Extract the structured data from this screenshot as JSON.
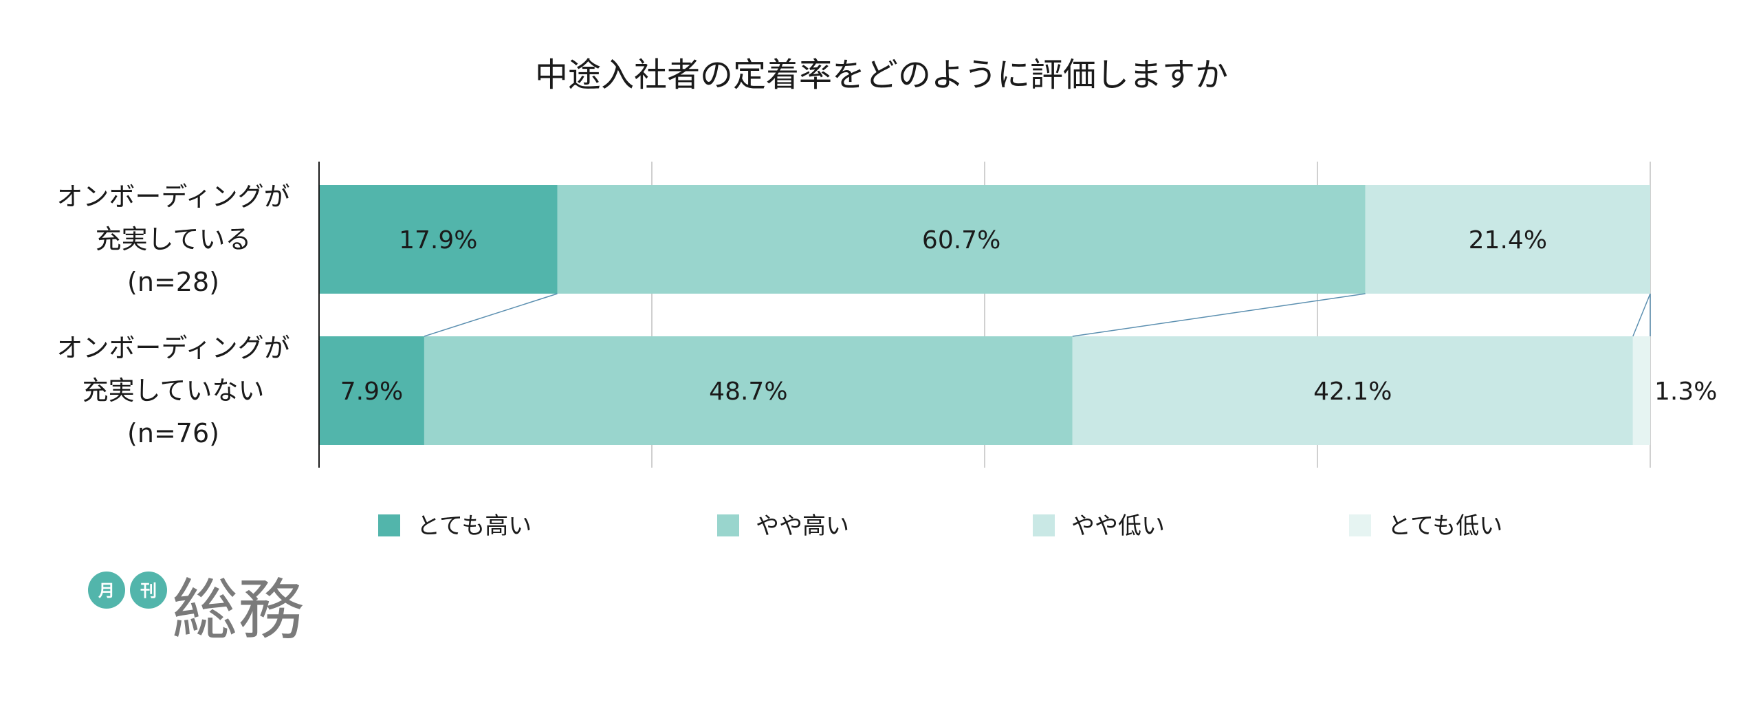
{
  "chart_data": {
    "type": "bar",
    "orientation": "horizontal",
    "stacked": "percent",
    "title": "中途入社者の定着率をどのように評価しますか",
    "categories": [
      [
        "オンボーディングが",
        "充実している",
        "(n=28)"
      ],
      [
        "オンボーディングが",
        "充実していない",
        "(n=76)"
      ]
    ],
    "series": [
      {
        "name": "とても高い",
        "color": "#52b5ab",
        "values": [
          17.9,
          7.9
        ],
        "labels": [
          "17.9%",
          "7.9%"
        ]
      },
      {
        "name": "やや高い",
        "color": "#99d5cd",
        "values": [
          60.7,
          48.7
        ],
        "labels": [
          "60.7%",
          "48.7%"
        ]
      },
      {
        "name": "やや低い",
        "color": "#c9e8e5",
        "values": [
          21.4,
          42.1
        ],
        "labels": [
          "21.4%",
          "42.1%"
        ]
      },
      {
        "name": "とても低い",
        "color": "#e6f4f2",
        "values": [
          0,
          1.3
        ],
        "labels": [
          "",
          "1.3%"
        ]
      }
    ],
    "xlim": [
      0,
      100
    ],
    "grid": true,
    "series_lines": true,
    "legend_position": "bottom"
  },
  "logo": {
    "badge_1": "月",
    "badge_2": "刊",
    "name": "総務",
    "badge_color": "#52b5ab"
  },
  "colors": {
    "axis": "#1a1a1a",
    "grid": "#d0d0d0",
    "series_line": "#5b8fb0"
  }
}
